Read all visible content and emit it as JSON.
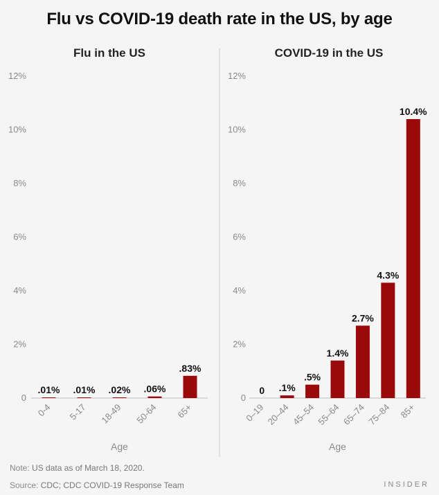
{
  "header": {
    "title": "Flu vs COVID-19 death rate in the US, by age"
  },
  "footer": {
    "note_label": "Note:",
    "note_text": " US data as of March 18, 2020.",
    "source_label": "Source:",
    "source_text": " CDC; CDC COVID-19 Response Team",
    "brand": "INSIDER"
  },
  "colors": {
    "bar": "#9b0a0a",
    "axis": "#bdbdbd",
    "divider": "#cccccc"
  },
  "chart_data": [
    {
      "type": "bar",
      "title": "Flu in the US",
      "xlabel": "Age",
      "ylabel": "",
      "ylim": [
        0,
        12
      ],
      "yticks": [
        "0",
        "2%",
        "4%",
        "6%",
        "8%",
        "10%",
        "12%"
      ],
      "ytick_values": [
        0,
        2,
        4,
        6,
        8,
        10,
        12
      ],
      "grid": false,
      "categories": [
        "0-4",
        "5-17",
        "18-49",
        "50-64",
        "65+"
      ],
      "values": [
        0.01,
        0.01,
        0.02,
        0.06,
        0.83
      ],
      "data_labels": [
        ".01%",
        ".01%",
        ".02%",
        ".06%",
        ".83%"
      ]
    },
    {
      "type": "bar",
      "title": "COVID-19 in the US",
      "xlabel": "Age",
      "ylabel": "",
      "ylim": [
        0,
        12
      ],
      "yticks": [
        "0",
        "2%",
        "4%",
        "6%",
        "8%",
        "10%",
        "12%"
      ],
      "ytick_values": [
        0,
        2,
        4,
        6,
        8,
        10,
        12
      ],
      "grid": false,
      "categories": [
        "0–19",
        "20–44",
        "45–54",
        "55–64",
        "65–74",
        "75–84",
        "85+"
      ],
      "values": [
        0,
        0.1,
        0.5,
        1.4,
        2.7,
        4.3,
        10.4
      ],
      "data_labels": [
        "0",
        ".1%",
        ".5%",
        "1.4%",
        "2.7%",
        "4.3%",
        "10.4%"
      ]
    }
  ]
}
